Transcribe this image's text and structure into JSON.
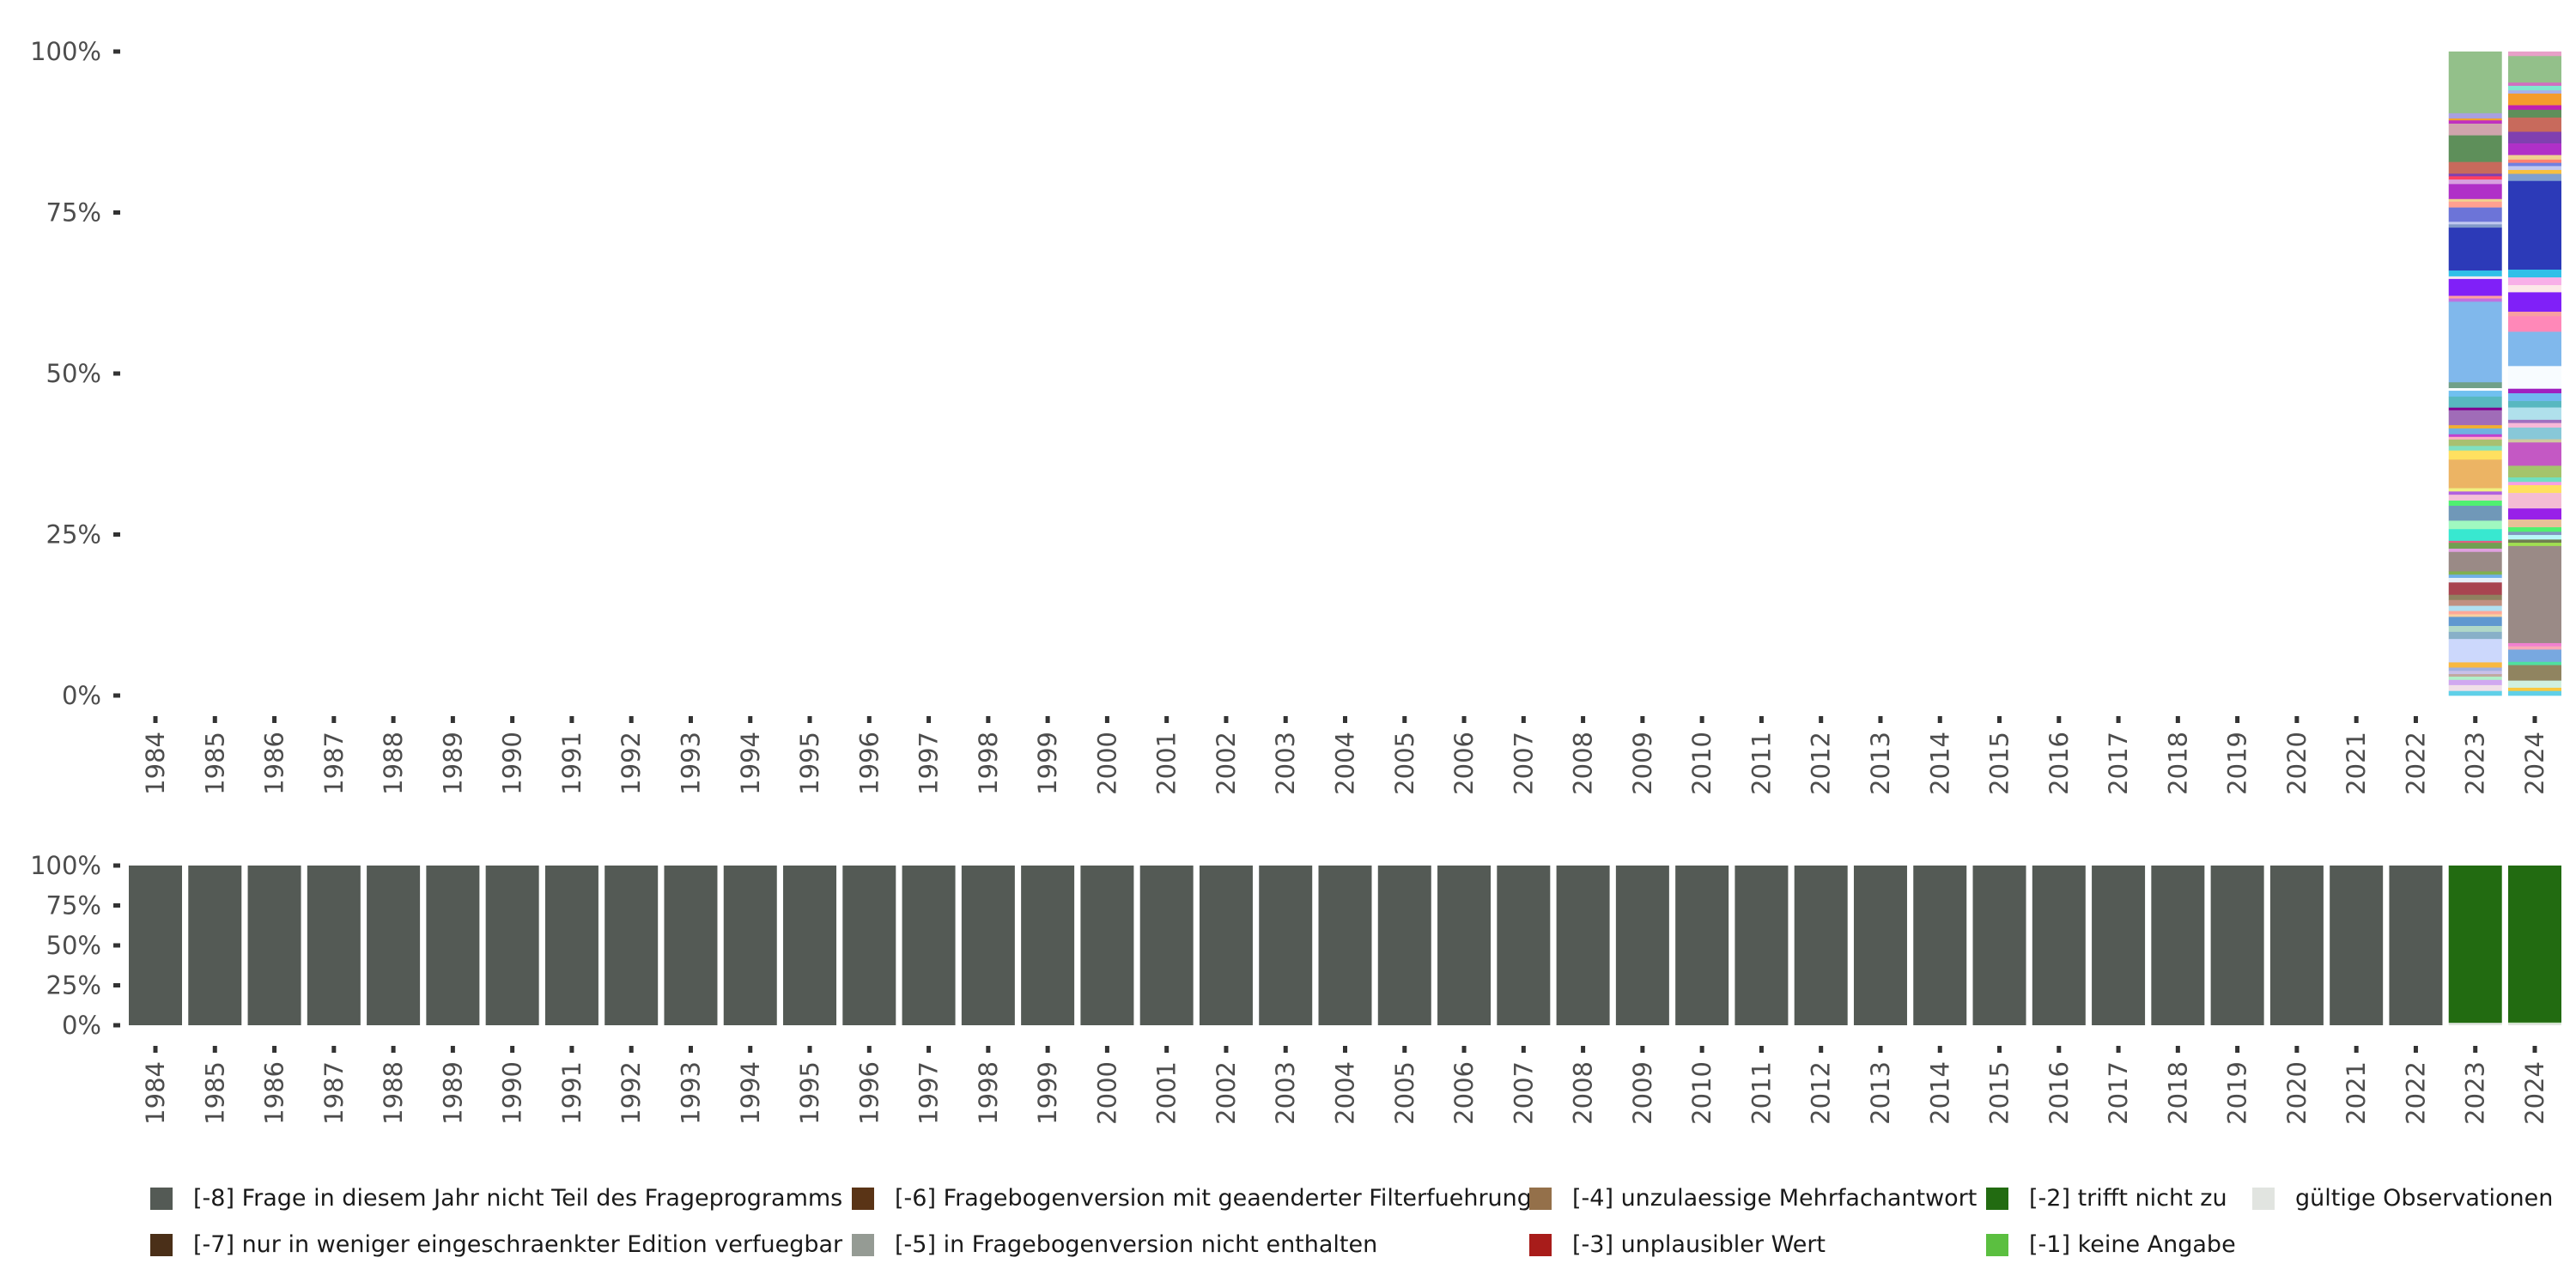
{
  "chart_data": [
    {
      "type": "bar",
      "stacked": true,
      "title": "",
      "xlabel": "",
      "ylabel": "",
      "ylim": [
        0,
        100
      ],
      "yticks": [
        "0%",
        "25%",
        "50%",
        "75%",
        "100%"
      ],
      "categories": [
        "1984",
        "1985",
        "1986",
        "1987",
        "1988",
        "1989",
        "1990",
        "1991",
        "1992",
        "1993",
        "1994",
        "1995",
        "1996",
        "1997",
        "1998",
        "1999",
        "2000",
        "2001",
        "2002",
        "2003",
        "2004",
        "2005",
        "2006",
        "2007",
        "2008",
        "2009",
        "2010",
        "2011",
        "2012",
        "2013",
        "2014",
        "2015",
        "2016",
        "2017",
        "2018",
        "2019",
        "2020",
        "2021",
        "2022",
        "2023",
        "2024"
      ],
      "note": "valid-answer distribution (segments top to bottom, percent, color)",
      "stacks": {
        "2023": [
          [
            9.5,
            "#93c08a"
          ],
          [
            0.8,
            "#a8a0e0"
          ],
          [
            0.3,
            "#f0a030"
          ],
          [
            0.5,
            "#c030c0"
          ],
          [
            1.8,
            "#d0a4ac"
          ],
          [
            4.1,
            "#5e8f5a"
          ],
          [
            1.8,
            "#c86a5c"
          ],
          [
            0.4,
            "#8040b0"
          ],
          [
            0.5,
            "#ff4060"
          ],
          [
            0.7,
            "#d8a0e0"
          ],
          [
            2.3,
            "#b030c8"
          ],
          [
            0.4,
            "#f0d090"
          ],
          [
            0.9,
            "#ffa090"
          ],
          [
            2.2,
            "#6c74d8"
          ],
          [
            0.4,
            "#c0c8f0"
          ],
          [
            0.5,
            "#8098c8"
          ],
          [
            6.6,
            "#2c3ab8"
          ],
          [
            0.9,
            "#30c0e8"
          ],
          [
            0.4,
            "#f8e8f0"
          ],
          [
            2.6,
            "#8020f8"
          ],
          [
            0.4,
            "#ffa0a0"
          ],
          [
            0.5,
            "#c070e0"
          ],
          [
            12.4,
            "#80b8ec"
          ],
          [
            0.9,
            "#70a088"
          ],
          [
            0.4,
            "#fafcff"
          ],
          [
            0.9,
            "#70c0f0"
          ],
          [
            1.7,
            "#58b8c0"
          ],
          [
            0.4,
            "#800090"
          ],
          [
            2.3,
            "#a06cb8"
          ],
          [
            0.5,
            "#f0b030"
          ],
          [
            0.9,
            "#70b0e0"
          ],
          [
            0.4,
            "#c040d0"
          ],
          [
            0.4,
            "#ffb0c0"
          ],
          [
            1.0,
            "#a8c070"
          ],
          [
            0.7,
            "#80e0c0"
          ],
          [
            1.4,
            "#ffe060"
          ],
          [
            4.4,
            "#ecb464"
          ],
          [
            0.5,
            "#f0f080"
          ],
          [
            0.5,
            "#b060e0"
          ],
          [
            0.9,
            "#f4c0d8"
          ],
          [
            0.8,
            "#50f070"
          ],
          [
            2.3,
            "#7098b8"
          ],
          [
            1.3,
            "#a0f8c0"
          ],
          [
            1.8,
            "#38e8d0"
          ],
          [
            0.3,
            "#e06080"
          ],
          [
            0.9,
            "#70a050"
          ],
          [
            0.5,
            "#e0a0e0"
          ],
          [
            3.0,
            "#9a8a86"
          ],
          [
            0.5,
            "#80b050"
          ],
          [
            0.5,
            "#70b0e8"
          ],
          [
            0.7,
            "#e8f0f8"
          ],
          [
            1.9,
            "#a84450"
          ],
          [
            0.8,
            "#908060"
          ],
          [
            0.9,
            "#c09080"
          ],
          [
            0.8,
            "#b0e0f0"
          ],
          [
            0.5,
            "#ffa898"
          ],
          [
            0.4,
            "#f8d0a0"
          ],
          [
            1.4,
            "#6098d0"
          ],
          [
            0.9,
            "#b0d8c8"
          ],
          [
            1.1,
            "#88b0c8"
          ],
          [
            3.6,
            "#ccd8fc"
          ],
          [
            0.8,
            "#f8b840"
          ],
          [
            0.5,
            "#a0b0e0"
          ],
          [
            0.5,
            "#c8c0e8"
          ],
          [
            0.4,
            "#c0a8a0"
          ],
          [
            0.5,
            "#b0f0c8"
          ],
          [
            0.8,
            "#d0a8f0"
          ],
          [
            0.9,
            "#f0e0e8"
          ],
          [
            0.7,
            "#60d0e8"
          ]
        ],
        "2024": [
          [
            0.7,
            "#e8a0c8"
          ],
          [
            4.1,
            "#93c08a"
          ],
          [
            0.5,
            "#d070c0"
          ],
          [
            0.7,
            "#80e8d0"
          ],
          [
            0.5,
            "#a8b0e8"
          ],
          [
            1.8,
            "#f49c2c"
          ],
          [
            0.7,
            "#c020b0"
          ],
          [
            1.2,
            "#5e8f5a"
          ],
          [
            2.2,
            "#c86a5c"
          ],
          [
            1.8,
            "#8040b0"
          ],
          [
            1.8,
            "#b030c8"
          ],
          [
            0.7,
            "#f0d090"
          ],
          [
            0.5,
            "#ff8070"
          ],
          [
            0.5,
            "#7080e0"
          ],
          [
            0.6,
            "#c0c8f0"
          ],
          [
            0.6,
            "#f8c040"
          ],
          [
            1.1,
            "#80a0d0"
          ],
          [
            13.7,
            "#2c3ab8"
          ],
          [
            1.2,
            "#30c0e8"
          ],
          [
            1.2,
            "#f8b0e8"
          ],
          [
            1.1,
            "#fce8e8"
          ],
          [
            3.0,
            "#8020f8"
          ],
          [
            0.7,
            "#f8a0a0"
          ],
          [
            2.4,
            "#ff88b8"
          ],
          [
            5.3,
            "#80b8ec"
          ],
          [
            3.5,
            "#f8fcff"
          ],
          [
            0.7,
            "#a020c0"
          ],
          [
            1.2,
            "#70b8f0"
          ],
          [
            1.0,
            "#58b8c0"
          ],
          [
            1.9,
            "#b0e0ec"
          ],
          [
            0.5,
            "#a070c0"
          ],
          [
            0.7,
            "#f8b8d8"
          ],
          [
            1.8,
            "#88c8d8"
          ],
          [
            0.5,
            "#d0c8a0"
          ],
          [
            3.6,
            "#c458c4"
          ],
          [
            1.8,
            "#a4c46c"
          ],
          [
            0.7,
            "#70e0c0"
          ],
          [
            0.5,
            "#f8a0e0"
          ],
          [
            1.2,
            "#ffe060"
          ],
          [
            2.4,
            "#f4bcd4"
          ],
          [
            1.7,
            "#9820e8"
          ],
          [
            1.2,
            "#e8c098"
          ],
          [
            0.7,
            "#50f070"
          ],
          [
            0.5,
            "#8098c0"
          ],
          [
            0.7,
            "#b8f8f8"
          ],
          [
            0.5,
            "#708050"
          ],
          [
            0.5,
            "#a0e050"
          ],
          [
            15.0,
            "#9a8a86"
          ],
          [
            0.5,
            "#f080d0"
          ],
          [
            0.5,
            "#f8a8b8"
          ],
          [
            1.9,
            "#78a8e0"
          ],
          [
            0.5,
            "#50e0a0"
          ],
          [
            2.4,
            "#908460"
          ],
          [
            1.1,
            "#d0f0e0"
          ],
          [
            0.5,
            "#f8c840"
          ],
          [
            0.7,
            "#60d0e8"
          ]
        ]
      }
    },
    {
      "type": "bar",
      "stacked": true,
      "ylim": [
        0,
        100
      ],
      "yticks": [
        "0%",
        "25%",
        "50%",
        "75%",
        "100%"
      ],
      "categories": [
        "1984",
        "1985",
        "1986",
        "1987",
        "1988",
        "1989",
        "1990",
        "1991",
        "1992",
        "1993",
        "1994",
        "1995",
        "1996",
        "1997",
        "1998",
        "1999",
        "2000",
        "2001",
        "2002",
        "2003",
        "2004",
        "2005",
        "2006",
        "2007",
        "2008",
        "2009",
        "2010",
        "2011",
        "2012",
        "2013",
        "2014",
        "2015",
        "2016",
        "2017",
        "2018",
        "2019",
        "2020",
        "2021",
        "2022",
        "2023",
        "2024"
      ],
      "series": [
        {
          "name": "[-8] Frage in diesem Jahr nicht Teil des Frageprogramms",
          "color": "#545a55",
          "values": [
            100,
            100,
            100,
            100,
            100,
            100,
            100,
            100,
            100,
            100,
            100,
            100,
            100,
            100,
            100,
            100,
            100,
            100,
            100,
            100,
            100,
            100,
            100,
            100,
            100,
            100,
            100,
            100,
            100,
            100,
            100,
            100,
            100,
            100,
            100,
            100,
            100,
            100,
            100,
            0,
            0
          ]
        },
        {
          "name": "[-7] nur in weniger eingeschraenkter Edition verfuegbar",
          "color": "#4a2f18",
          "values": [
            0,
            0,
            0,
            0,
            0,
            0,
            0,
            0,
            0,
            0,
            0,
            0,
            0,
            0,
            0,
            0,
            0,
            0,
            0,
            0,
            0,
            0,
            0,
            0,
            0,
            0,
            0,
            0,
            0,
            0,
            0,
            0,
            0,
            0,
            0,
            0,
            0,
            0,
            0,
            0,
            0
          ]
        },
        {
          "name": "[-6] Fragebogenversion mit geaenderter Filterfuehrung",
          "color": "#5a3416",
          "values": [
            0,
            0,
            0,
            0,
            0,
            0,
            0,
            0,
            0,
            0,
            0,
            0,
            0,
            0,
            0,
            0,
            0,
            0,
            0,
            0,
            0,
            0,
            0,
            0,
            0,
            0,
            0,
            0,
            0,
            0,
            0,
            0,
            0,
            0,
            0,
            0,
            0,
            0,
            0,
            0,
            0
          ]
        },
        {
          "name": "[-5] in Fragebogenversion nicht enthalten",
          "color": "#959b94",
          "values": [
            0,
            0,
            0,
            0,
            0,
            0,
            0,
            0,
            0,
            0,
            0,
            0,
            0,
            0,
            0,
            0,
            0,
            0,
            0,
            0,
            0,
            0,
            0,
            0,
            0,
            0,
            0,
            0,
            0,
            0,
            0,
            0,
            0,
            0,
            0,
            0,
            0,
            0,
            0,
            0,
            0
          ]
        },
        {
          "name": "[-4] unzulaessige Mehrfachantwort",
          "color": "#94704a",
          "values": [
            0,
            0,
            0,
            0,
            0,
            0,
            0,
            0,
            0,
            0,
            0,
            0,
            0,
            0,
            0,
            0,
            0,
            0,
            0,
            0,
            0,
            0,
            0,
            0,
            0,
            0,
            0,
            0,
            0,
            0,
            0,
            0,
            0,
            0,
            0,
            0,
            0,
            0,
            0,
            0,
            0
          ]
        },
        {
          "name": "[-3] unplausibler Wert",
          "color": "#a81c1a",
          "values": [
            0,
            0,
            0,
            0,
            0,
            0,
            0,
            0,
            0,
            0,
            0,
            0,
            0,
            0,
            0,
            0,
            0,
            0,
            0,
            0,
            0,
            0,
            0,
            0,
            0,
            0,
            0,
            0,
            0,
            0,
            0,
            0,
            0,
            0,
            0,
            0,
            0,
            0,
            0,
            0,
            0
          ]
        },
        {
          "name": "[-2] trifft nicht zu",
          "color": "#226b11",
          "values": [
            0,
            0,
            0,
            0,
            0,
            0,
            0,
            0,
            0,
            0,
            0,
            0,
            0,
            0,
            0,
            0,
            0,
            0,
            0,
            0,
            0,
            0,
            0,
            0,
            0,
            0,
            0,
            0,
            0,
            0,
            0,
            0,
            0,
            0,
            0,
            0,
            0,
            0,
            0,
            98.5,
            98.3
          ]
        },
        {
          "name": "[-1] keine Angabe",
          "color": "#5bbf40",
          "values": [
            0,
            0,
            0,
            0,
            0,
            0,
            0,
            0,
            0,
            0,
            0,
            0,
            0,
            0,
            0,
            0,
            0,
            0,
            0,
            0,
            0,
            0,
            0,
            0,
            0,
            0,
            0,
            0,
            0,
            0,
            0,
            0,
            0,
            0,
            0,
            0,
            0,
            0,
            0,
            0,
            0.2
          ]
        },
        {
          "name": "gültige Observationen",
          "color": "#e1e4e0",
          "values": [
            0,
            0,
            0,
            0,
            0,
            0,
            0,
            0,
            0,
            0,
            0,
            0,
            0,
            0,
            0,
            0,
            0,
            0,
            0,
            0,
            0,
            0,
            0,
            0,
            0,
            0,
            0,
            0,
            0,
            0,
            0,
            0,
            0,
            0,
            0,
            0,
            0,
            0,
            0,
            1.5,
            1.5
          ]
        }
      ],
      "legend_position": "bottom"
    }
  ],
  "legend": [
    {
      "label": "[-8] Frage in diesem Jahr nicht Teil des Frageprogramms",
      "color": "#545a55"
    },
    {
      "label": "[-7] nur in weniger eingeschraenkter Edition verfuegbar",
      "color": "#4a2f18"
    },
    {
      "label": "[-6] Fragebogenversion mit geaenderter Filterfuehrung",
      "color": "#5a3416"
    },
    {
      "label": "[-5] in Fragebogenversion nicht enthalten",
      "color": "#959b94"
    },
    {
      "label": "[-4] unzulaessige Mehrfachantwort",
      "color": "#94704a"
    },
    {
      "label": "[-3] unplausibler Wert",
      "color": "#a81c1a"
    },
    {
      "label": "[-2] trifft nicht zu",
      "color": "#226b11"
    },
    {
      "label": "[-1] keine Angabe",
      "color": "#5bbf40"
    },
    {
      "label": "gültige Observationen",
      "color": "#e1e4e0"
    }
  ]
}
